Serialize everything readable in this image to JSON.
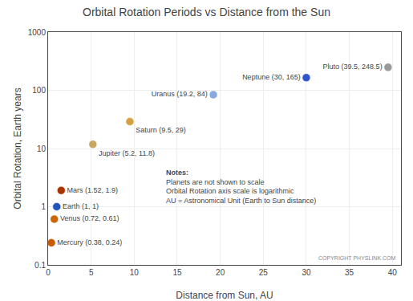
{
  "chart_data": {
    "type": "scatter",
    "title": "Orbital Rotation Periods vs Distance from the Sun",
    "xlabel": "Distance from Sun, AU",
    "ylabel": "Orbital Rotation, Earth years",
    "x": [
      0.38,
      0.72,
      1.0,
      1.52,
      5.2,
      9.5,
      19.2,
      30.0,
      39.5
    ],
    "values": [
      0.24,
      0.61,
      1.0,
      1.9,
      11.8,
      29.0,
      84.0,
      165.0,
      248.5
    ],
    "value_labels": [
      "Mercury (0.38, 0.24)",
      "Venus (0.72, 0.61)",
      "Earth (1, 1)",
      "Mars (1.52, 1.9)",
      "Jupiter (5.2, 11.8)",
      "Saturn (9.5, 29)",
      "Uranus (19.2, 84)",
      "Neptune (30, 165)",
      "Pluto (39.5, 248.5)"
    ],
    "data_labels": true,
    "colors": [
      "#c85a00",
      "#cc6600",
      "#2255bb",
      "#aa3300",
      "#c8a860",
      "#d4a040",
      "#88aadd",
      "#3355cc",
      "#999999"
    ],
    "xlim": [
      0,
      41
    ],
    "xticks": [
      0,
      5,
      10,
      15,
      20,
      25,
      30,
      35,
      40
    ],
    "ylim": [
      0.1,
      1000
    ],
    "yticks": [
      0.1,
      1,
      10,
      100,
      1000
    ],
    "log": "y",
    "grid": true,
    "annotations": [
      "Notes:",
      "Planets are not shown to scale",
      "Orbital Rotation axis scale is logarithmic",
      "AU = Astronomical Unit (Earth to Sun distance)",
      "COPYRIGHT PHYSLINK.COM"
    ]
  }
}
